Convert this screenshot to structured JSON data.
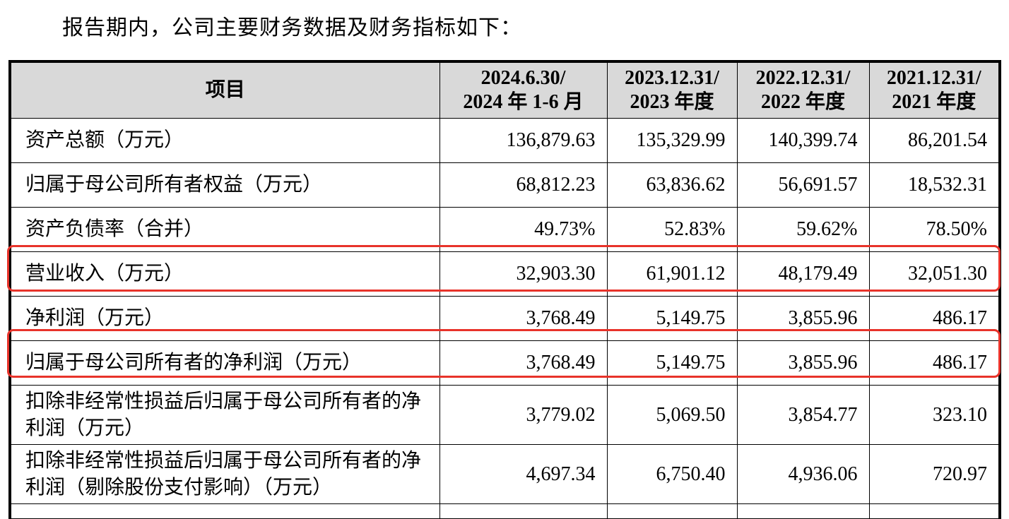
{
  "intro": "报告期内，公司主要财务数据及财务指标如下：",
  "table": {
    "headers": [
      "项目",
      [
        "2024.6.30/",
        "2024 年 1-6 月"
      ],
      [
        "2023.12.31/",
        "2023 年度"
      ],
      [
        "2022.12.31/",
        "2022 年度"
      ],
      [
        "2021.12.31/",
        "2021 年度"
      ]
    ],
    "rows": [
      {
        "label": "资产总额（万元）",
        "values": [
          "136,879.63",
          "135,329.99",
          "140,399.74",
          "86,201.54"
        ]
      },
      {
        "label": "归属于母公司所有者权益（万元）",
        "values": [
          "68,812.23",
          "63,836.62",
          "56,691.57",
          "18,532.31"
        ]
      },
      {
        "label": "资产负债率（合并）",
        "values": [
          "49.73%",
          "52.83%",
          "59.62%",
          "78.50%"
        ]
      },
      {
        "label": "营业收入（万元）",
        "values": [
          "32,903.30",
          "61,901.12",
          "48,179.49",
          "32,051.30"
        ],
        "highlighted": true
      },
      {
        "label": "净利润（万元）",
        "values": [
          "3,768.49",
          "5,149.75",
          "3,855.96",
          "486.17"
        ]
      },
      {
        "label": "归属于母公司所有者的净利润（万元）",
        "values": [
          "3,768.49",
          "5,149.75",
          "3,855.96",
          "486.17"
        ],
        "highlighted": true
      },
      {
        "label": "扣除非经常性损益后归属于母公司所有者的净利润（万元）",
        "values": [
          "3,779.02",
          "5,069.50",
          "3,854.77",
          "323.10"
        ]
      },
      {
        "label": "扣除非经常性损益后归属于母公司所有者的净利润（剔除股份支付影响）（万元）",
        "values": [
          "4,697.34",
          "6,750.40",
          "4,936.06",
          "720.97"
        ]
      }
    ]
  },
  "colors": {
    "highlight": "#e8332a",
    "header_bg": "#d9d9d9"
  }
}
